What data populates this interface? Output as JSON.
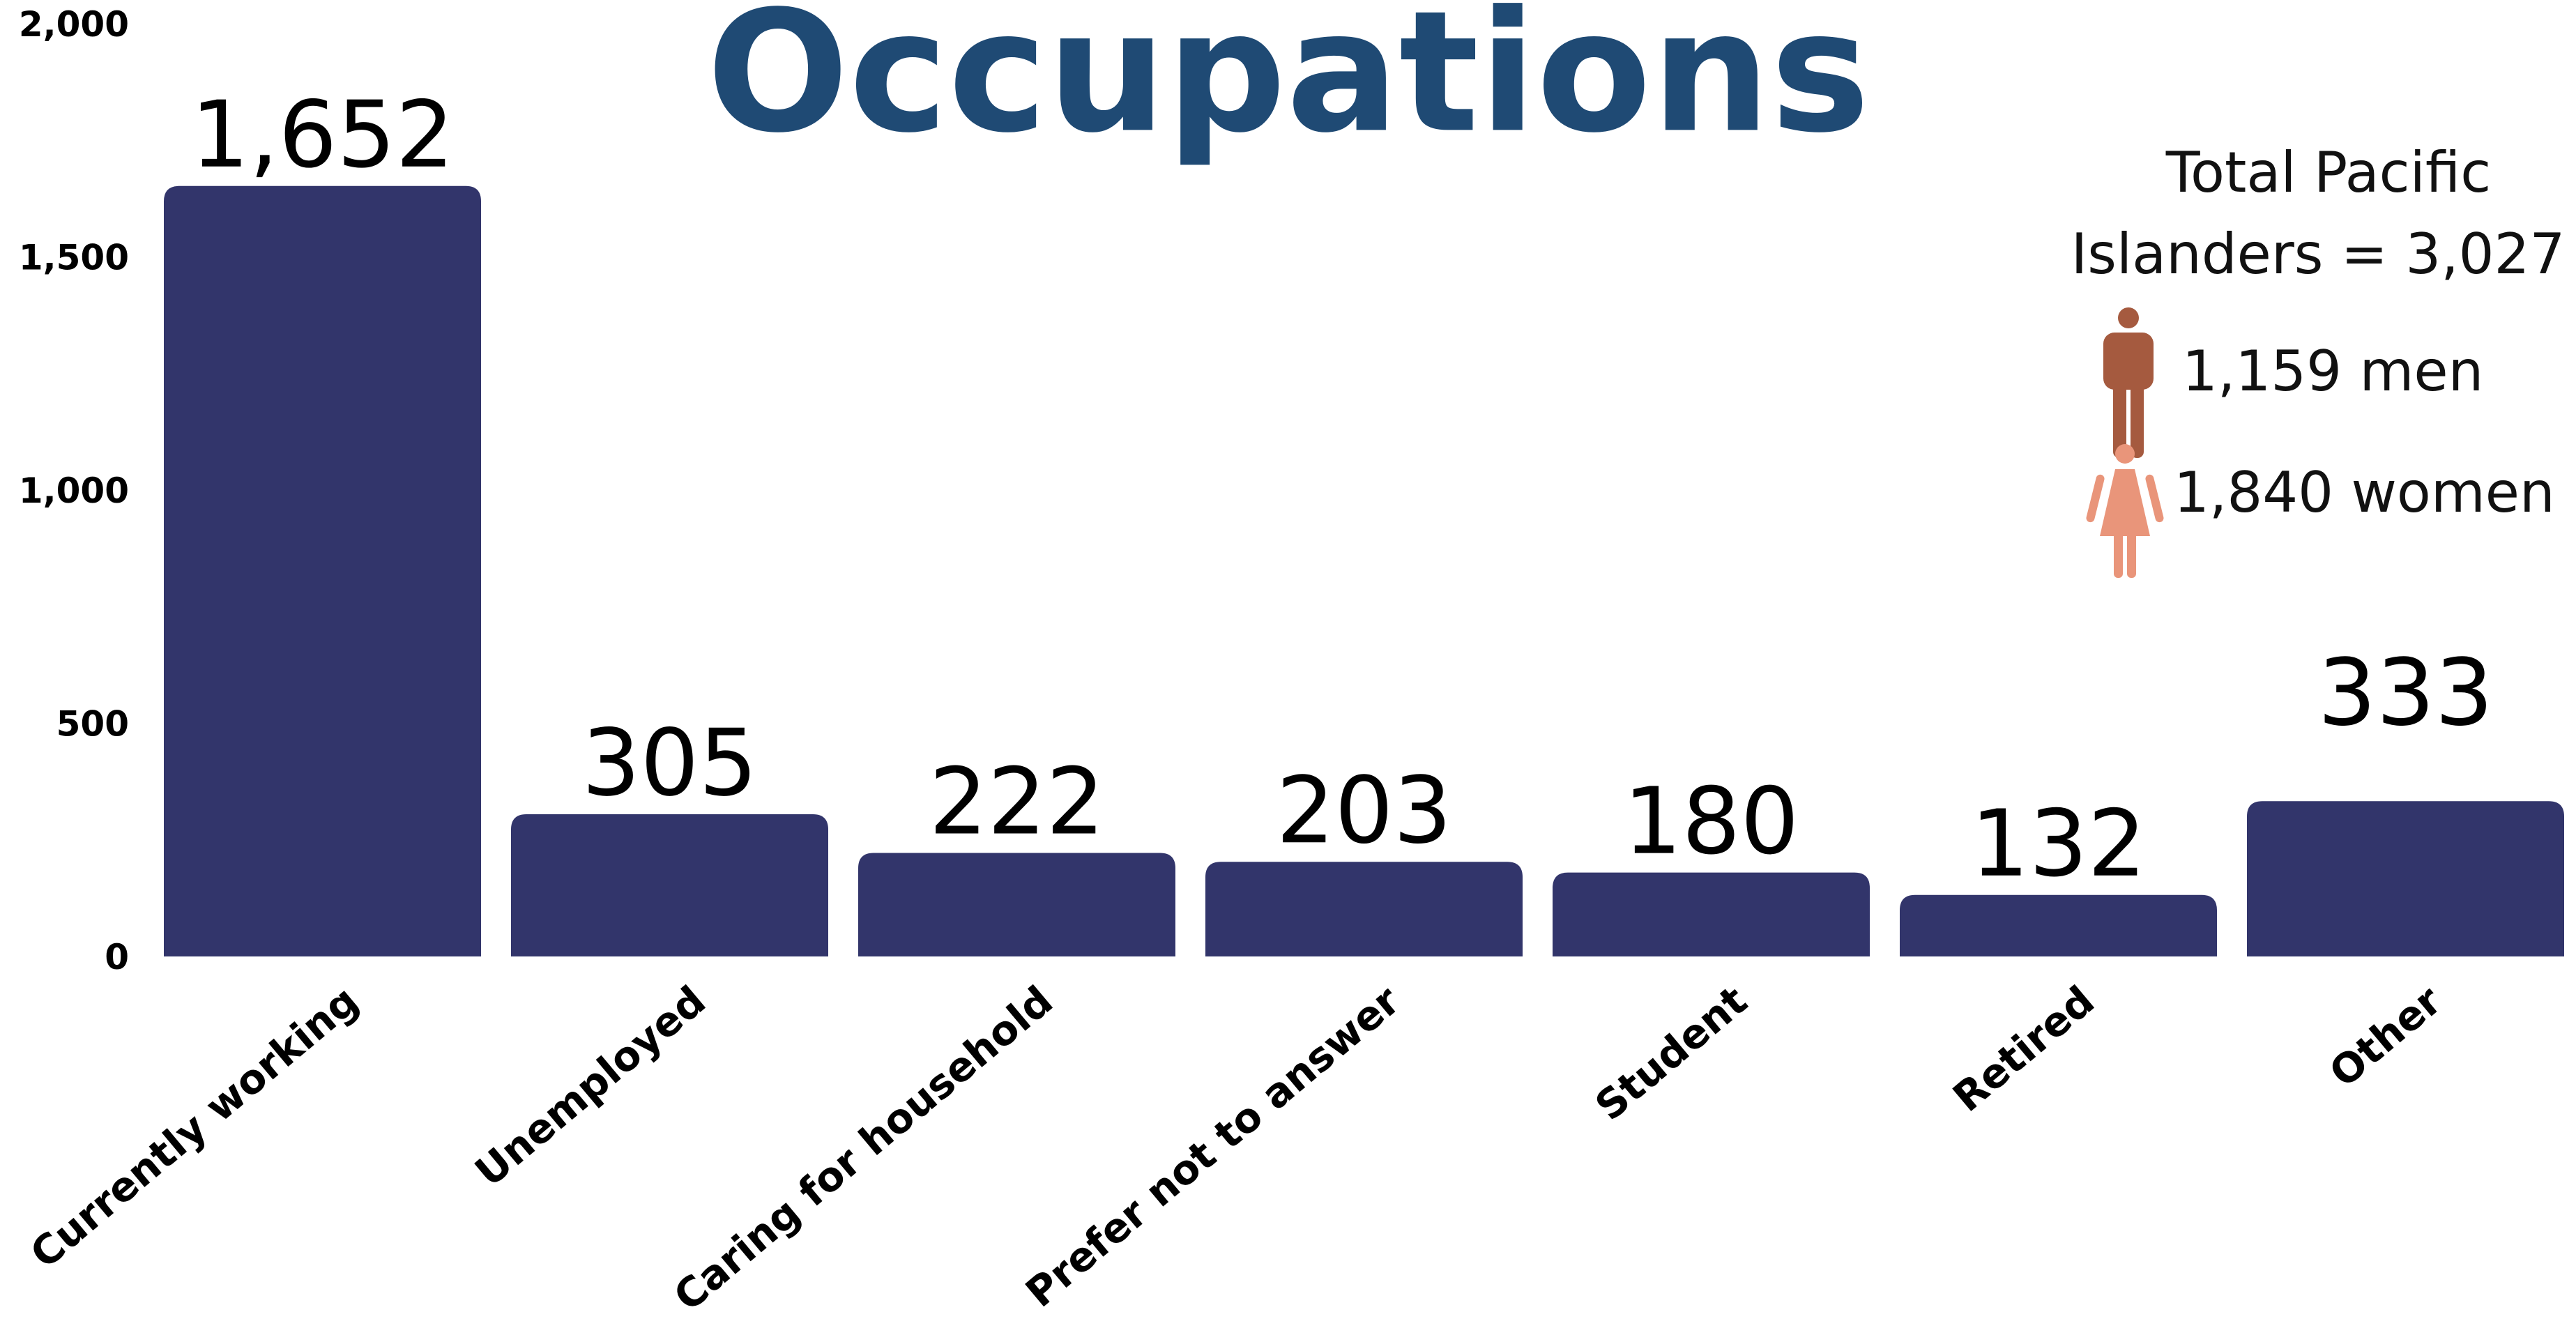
{
  "chart_data": {
    "type": "bar",
    "title": "Occupations",
    "categories": [
      "Currently working",
      "Unemployed",
      "Caring for household",
      "Prefer not to answer",
      "Student",
      "Retired",
      "Other"
    ],
    "values": [
      1652,
      305,
      222,
      203,
      180,
      132,
      333
    ],
    "value_labels": [
      "1,652",
      "305",
      "222",
      "203",
      "180",
      "132",
      "333"
    ],
    "ylim": [
      0,
      2000
    ],
    "yticks": [
      {
        "value": 0,
        "label": "0"
      },
      {
        "value": 500,
        "label": "500"
      },
      {
        "value": 1000,
        "label": "1,000"
      },
      {
        "value": 1500,
        "label": "1,500"
      },
      {
        "value": 2000,
        "label": "2,000"
      }
    ],
    "xlabel": "",
    "ylabel": "",
    "grid": false,
    "bar_color": "#32356b",
    "title_color": "#1f4a74"
  },
  "summary": {
    "line1": "Total Pacific",
    "line2": "Islanders = 3,027",
    "men_label": "1,159 men",
    "women_label": "1,840 women",
    "men_icon": "man-icon",
    "women_icon": "woman-icon",
    "men_color": "#a55a3f",
    "women_color": "#e9957a"
  }
}
